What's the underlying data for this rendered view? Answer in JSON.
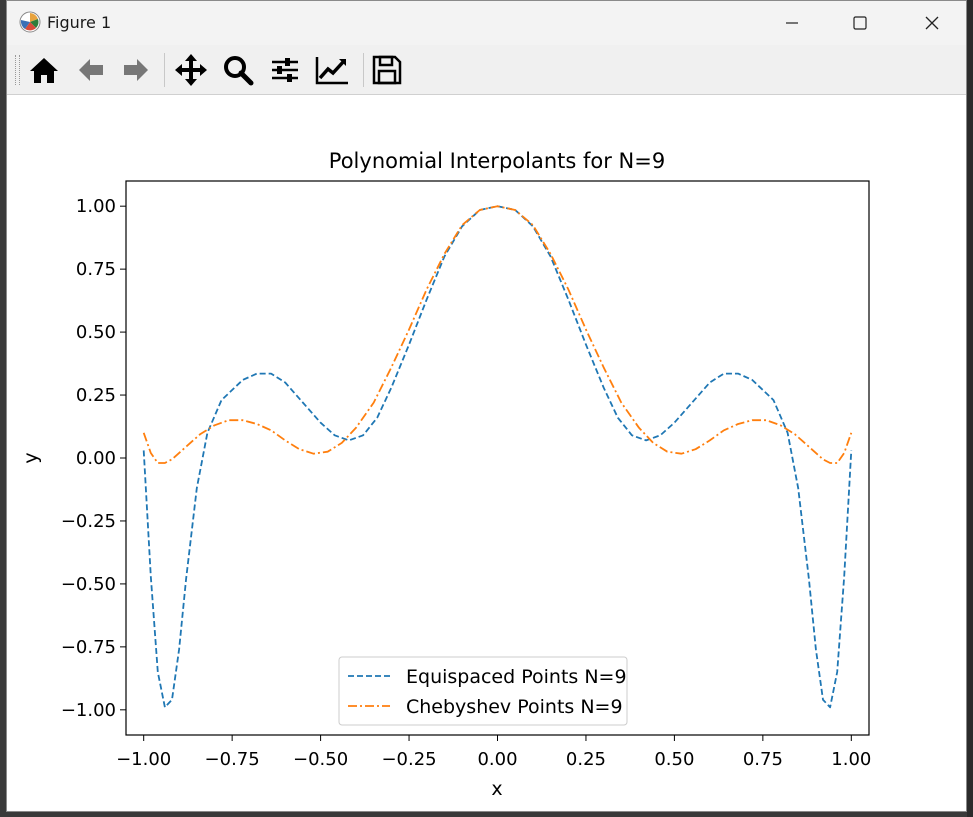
{
  "window": {
    "title": "Figure 1"
  },
  "toolbar": {
    "buttons": [
      {
        "name": "home-icon"
      },
      {
        "name": "back-icon"
      },
      {
        "name": "forward-icon"
      },
      {
        "name": "pan-icon"
      },
      {
        "name": "zoom-icon"
      },
      {
        "name": "configure-subplots-icon"
      },
      {
        "name": "edit-axis-icon"
      },
      {
        "name": "save-icon"
      }
    ]
  },
  "colors": {
    "equispaced": "#1f77b4",
    "chebyshev": "#ff7f0e"
  },
  "chart_data": {
    "type": "line",
    "title": "Polynomial Interpolants for N=9",
    "xlabel": "x",
    "ylabel": "y",
    "xlim": [
      -1.05,
      1.05
    ],
    "ylim": [
      -1.1,
      1.1
    ],
    "xticks": [
      -1.0,
      -0.75,
      -0.5,
      -0.25,
      0.0,
      0.25,
      0.5,
      0.75,
      1.0
    ],
    "xtick_labels": [
      "−1.00",
      "−0.75",
      "−0.50",
      "−0.25",
      "0.00",
      "0.25",
      "0.50",
      "0.75",
      "1.00"
    ],
    "yticks": [
      1.0,
      0.75,
      0.5,
      0.25,
      0.0,
      -0.25,
      -0.5,
      -0.75,
      -1.0
    ],
    "ytick_labels": [
      "1.00",
      "0.75",
      "0.50",
      "0.25",
      "0.00",
      "−0.25",
      "−0.50",
      "−0.75",
      "−1.00"
    ],
    "grid": false,
    "legend_position": "lower center",
    "series": [
      {
        "name": "Equispaced Points N=9",
        "style": "dashed",
        "points": [
          [
            -1.0,
            0.03
          ],
          [
            -0.98,
            -0.47
          ],
          [
            -0.96,
            -0.85
          ],
          [
            -0.94,
            -0.99
          ],
          [
            -0.92,
            -0.96
          ],
          [
            -0.9,
            -0.76
          ],
          [
            -0.88,
            -0.48
          ],
          [
            -0.85,
            -0.12
          ],
          [
            -0.82,
            0.1
          ],
          [
            -0.78,
            0.23
          ],
          [
            -0.72,
            0.31
          ],
          [
            -0.68,
            0.335
          ],
          [
            -0.64,
            0.335
          ],
          [
            -0.6,
            0.3
          ],
          [
            -0.55,
            0.22
          ],
          [
            -0.5,
            0.14
          ],
          [
            -0.46,
            0.09
          ],
          [
            -0.42,
            0.07
          ],
          [
            -0.38,
            0.09
          ],
          [
            -0.34,
            0.16
          ],
          [
            -0.3,
            0.28
          ],
          [
            -0.25,
            0.45
          ],
          [
            -0.2,
            0.63
          ],
          [
            -0.15,
            0.8
          ],
          [
            -0.1,
            0.92
          ],
          [
            -0.05,
            0.985
          ],
          [
            0.0,
            1.0
          ],
          [
            0.05,
            0.985
          ],
          [
            0.1,
            0.92
          ],
          [
            0.15,
            0.8
          ],
          [
            0.2,
            0.63
          ],
          [
            0.25,
            0.45
          ],
          [
            0.3,
            0.28
          ],
          [
            0.34,
            0.16
          ],
          [
            0.38,
            0.09
          ],
          [
            0.42,
            0.07
          ],
          [
            0.46,
            0.09
          ],
          [
            0.5,
            0.14
          ],
          [
            0.55,
            0.22
          ],
          [
            0.6,
            0.3
          ],
          [
            0.64,
            0.335
          ],
          [
            0.68,
            0.335
          ],
          [
            0.72,
            0.31
          ],
          [
            0.78,
            0.23
          ],
          [
            0.82,
            0.1
          ],
          [
            0.85,
            -0.12
          ],
          [
            0.88,
            -0.48
          ],
          [
            0.9,
            -0.76
          ],
          [
            0.92,
            -0.96
          ],
          [
            0.94,
            -0.99
          ],
          [
            0.96,
            -0.85
          ],
          [
            0.98,
            -0.47
          ],
          [
            1.0,
            0.03
          ]
        ]
      },
      {
        "name": "Chebyshev Points N=9",
        "style": "dashdot",
        "points": [
          [
            -1.0,
            0.1
          ],
          [
            -0.98,
            0.02
          ],
          [
            -0.96,
            -0.02
          ],
          [
            -0.94,
            -0.02
          ],
          [
            -0.92,
            -0.005
          ],
          [
            -0.88,
            0.045
          ],
          [
            -0.84,
            0.095
          ],
          [
            -0.8,
            0.13
          ],
          [
            -0.76,
            0.15
          ],
          [
            -0.72,
            0.15
          ],
          [
            -0.68,
            0.135
          ],
          [
            -0.64,
            0.11
          ],
          [
            -0.6,
            0.07
          ],
          [
            -0.56,
            0.035
          ],
          [
            -0.52,
            0.017
          ],
          [
            -0.48,
            0.025
          ],
          [
            -0.44,
            0.06
          ],
          [
            -0.4,
            0.12
          ],
          [
            -0.35,
            0.22
          ],
          [
            -0.3,
            0.36
          ],
          [
            -0.25,
            0.51
          ],
          [
            -0.2,
            0.67
          ],
          [
            -0.15,
            0.81
          ],
          [
            -0.1,
            0.925
          ],
          [
            -0.05,
            0.985
          ],
          [
            0.0,
            1.0
          ],
          [
            0.05,
            0.985
          ],
          [
            0.1,
            0.925
          ],
          [
            0.15,
            0.81
          ],
          [
            0.2,
            0.67
          ],
          [
            0.25,
            0.51
          ],
          [
            0.3,
            0.36
          ],
          [
            0.35,
            0.22
          ],
          [
            0.4,
            0.12
          ],
          [
            0.44,
            0.06
          ],
          [
            0.48,
            0.025
          ],
          [
            0.52,
            0.017
          ],
          [
            0.56,
            0.035
          ],
          [
            0.6,
            0.07
          ],
          [
            0.64,
            0.11
          ],
          [
            0.68,
            0.135
          ],
          [
            0.72,
            0.15
          ],
          [
            0.76,
            0.15
          ],
          [
            0.8,
            0.13
          ],
          [
            0.84,
            0.095
          ],
          [
            0.88,
            0.045
          ],
          [
            0.92,
            -0.005
          ],
          [
            0.94,
            -0.02
          ],
          [
            0.96,
            -0.02
          ],
          [
            0.98,
            0.02
          ],
          [
            1.0,
            0.1
          ]
        ]
      }
    ]
  }
}
